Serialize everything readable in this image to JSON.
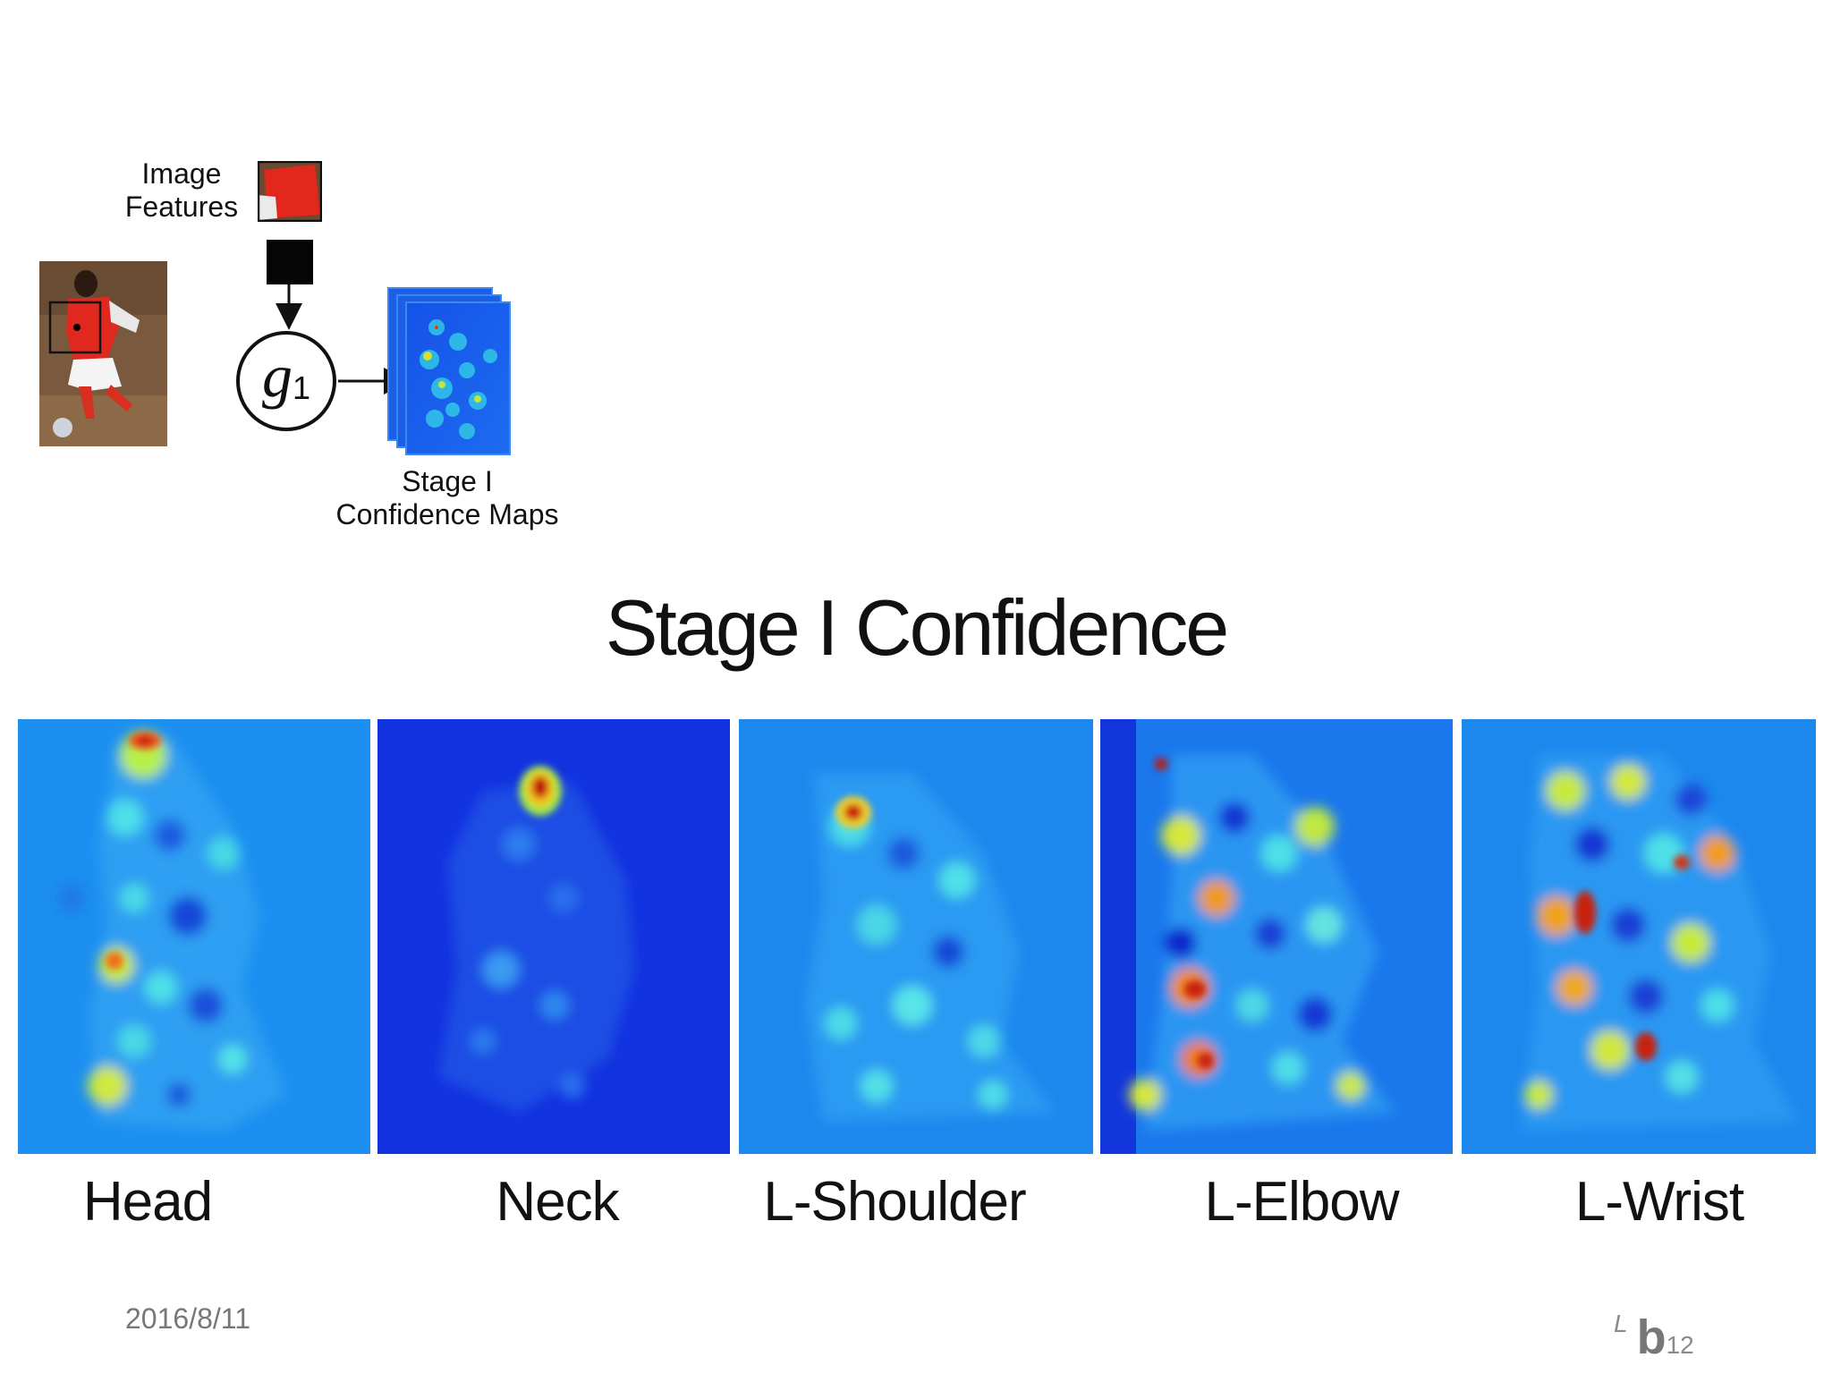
{
  "diagram": {
    "features_label_1": "Image",
    "features_label_2": "Features",
    "node_symbol": "g",
    "node_subscript": "1",
    "stage_label_1": "Stage I",
    "stage_label_2": "Confidence Maps"
  },
  "title": "Stage I Confidence",
  "maps": [
    {
      "label": "Head"
    },
    {
      "label": "Neck"
    },
    {
      "label": "L-Shoulder"
    },
    {
      "label": "L-Elbow"
    },
    {
      "label": "L-Wrist"
    }
  ],
  "footer": {
    "date": "2016/8/11",
    "logo_prefix": "L",
    "logo_letter": "b",
    "page_number": "12"
  }
}
